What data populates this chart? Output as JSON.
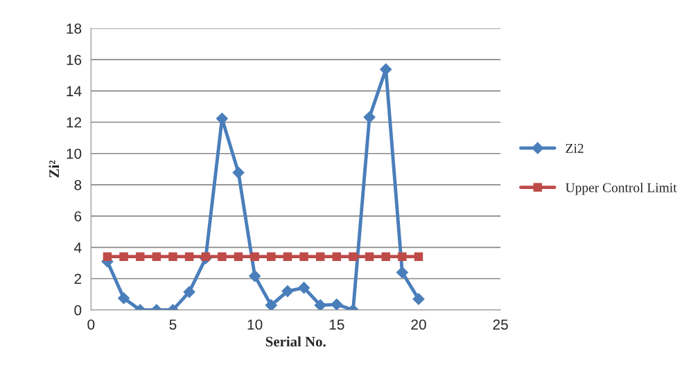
{
  "chart_data": {
    "type": "line",
    "xlabel": "Serial No.",
    "ylabel": "Zi²",
    "x": [
      1,
      2,
      3,
      4,
      5,
      6,
      7,
      8,
      9,
      10,
      11,
      12,
      13,
      14,
      15,
      16,
      17,
      18,
      19,
      20
    ],
    "series": [
      {
        "name": "Zi2",
        "color": "#4a7ebb",
        "marker": "diamond",
        "values": [
          3.1,
          0.75,
          0,
          0,
          0,
          1.15,
          3.3,
          12.23,
          8.78,
          2.17,
          0.3,
          1.2,
          1.42,
          0.3,
          0.35,
          0,
          12.32,
          15.38,
          2.4,
          0.7
        ]
      },
      {
        "name": "Upper Control Limit",
        "color": "#be4b48",
        "marker": "square",
        "values": [
          3.41,
          3.41,
          3.41,
          3.41,
          3.41,
          3.41,
          3.41,
          3.41,
          3.41,
          3.41,
          3.41,
          3.41,
          3.41,
          3.41,
          3.41,
          3.41,
          3.41,
          3.41,
          3.41,
          3.41
        ]
      }
    ],
    "xlim": [
      0,
      25
    ],
    "xticks": [
      0,
      5,
      10,
      15,
      20,
      25
    ],
    "ylim": [
      0,
      18
    ],
    "yticks": [
      0,
      2,
      4,
      6,
      8,
      10,
      12,
      14,
      16,
      18
    ],
    "grid": "y",
    "legend": "right"
  }
}
